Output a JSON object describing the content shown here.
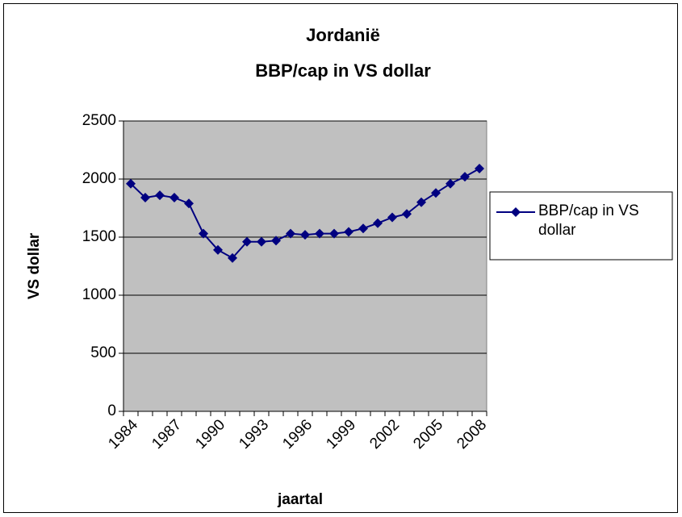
{
  "chart_data": {
    "type": "line",
    "title": [
      "Jordanië",
      "BBP/cap in VS dollar"
    ],
    "x_label": "jaartal",
    "y_label": "VS dollar",
    "categories": [
      "1984",
      null,
      null,
      "1987",
      null,
      null,
      "1990",
      null,
      null,
      "1993",
      null,
      null,
      "1996",
      null,
      null,
      "1999",
      null,
      null,
      "2002",
      null,
      null,
      "2005",
      null,
      null,
      "2008"
    ],
    "series": [
      {
        "name": "BBP/cap in VS dollar",
        "color": "#000080",
        "values": [
          1960,
          1840,
          1860,
          1840,
          1790,
          1530,
          1390,
          1320,
          1460,
          1460,
          1470,
          1530,
          1520,
          1530,
          1530,
          1545,
          1575,
          1620,
          1670,
          1700,
          1800,
          1880,
          1960,
          2020,
          2090
        ]
      }
    ],
    "ylim": [
      0,
      2500
    ],
    "yticks": [
      0,
      500,
      1000,
      1500,
      2000,
      2500
    ],
    "grid": true,
    "plot_background": "#c0c0c0",
    "legend": "right"
  }
}
